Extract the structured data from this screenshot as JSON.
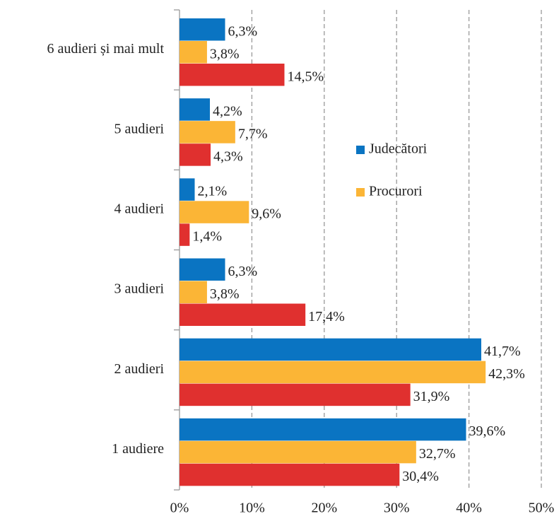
{
  "chart_data": {
    "type": "hbar",
    "categories": [
      "6 audieri și mai mult",
      "5 audieri",
      "4 audieri",
      "3 audieri",
      "2 audieri",
      "1 audiere"
    ],
    "series": [
      {
        "name": "Judecători",
        "color": "#0a74c2",
        "values": [
          6.3,
          4.2,
          2.1,
          6.3,
          41.7,
          39.6
        ],
        "value_labels": [
          "6,3%",
          "4,2%",
          "2,1%",
          "6,3%",
          "41,7%",
          "39,6%"
        ]
      },
      {
        "name": "Procurori",
        "color": "#fbb536",
        "values": [
          3.8,
          7.7,
          9.6,
          3.8,
          42.3,
          32.7
        ],
        "value_labels": [
          "3,8%",
          "7,7%",
          "9,6%",
          "3,8%",
          "42,3%",
          "32,7%"
        ]
      },
      {
        "name": null,
        "color": "#e0302f",
        "values": [
          14.5,
          4.3,
          1.4,
          17.4,
          31.9,
          30.4
        ],
        "value_labels": [
          "14,5%",
          "4,3%",
          "1,4%",
          "17,4%",
          "31,9%",
          "30,4%"
        ]
      }
    ],
    "xlim": [
      0,
      50
    ],
    "xticks": [
      {
        "value": 0,
        "label": "0%"
      },
      {
        "value": 10,
        "label": "10%"
      },
      {
        "value": 20,
        "label": "20%"
      },
      {
        "value": 30,
        "label": "30%"
      },
      {
        "value": 40,
        "label": "40%"
      },
      {
        "value": 50,
        "label": "50%"
      }
    ],
    "grid": true,
    "legend": "right"
  }
}
